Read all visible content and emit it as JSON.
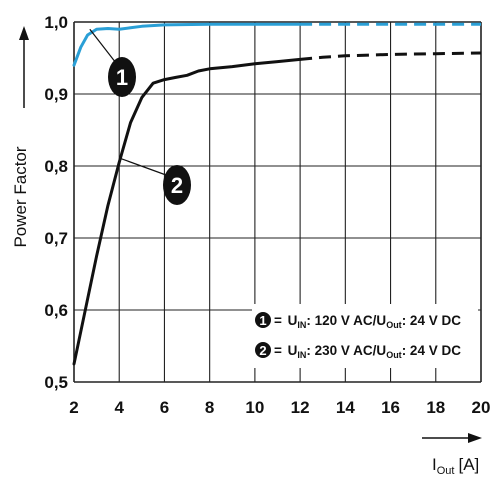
{
  "chart_data": {
    "type": "line",
    "xlabel": {
      "main": "I",
      "sub": "Out",
      "unit": "[A]"
    },
    "ylabel": "Power Factor",
    "xlim": [
      2,
      20
    ],
    "ylim": [
      0.5,
      1.0
    ],
    "x_ticks": [
      "2",
      "4",
      "6",
      "8",
      "10",
      "12",
      "14",
      "16",
      "18",
      "20"
    ],
    "y_ticks": [
      "0,5",
      "0,6",
      "0,7",
      "0,8",
      "0,9",
      "1,0"
    ],
    "grid": true,
    "series": [
      {
        "marker": "1",
        "color": "#2a9fd6",
        "solid_until_x": 12.8,
        "points": [
          [
            2.0,
            0.94
          ],
          [
            2.3,
            0.965
          ],
          [
            2.6,
            0.982
          ],
          [
            3.0,
            0.99
          ],
          [
            3.5,
            0.991
          ],
          [
            4.0,
            0.99
          ],
          [
            4.5,
            0.992
          ],
          [
            5.0,
            0.994
          ],
          [
            6.0,
            0.996
          ],
          [
            8.0,
            0.997
          ],
          [
            12.0,
            0.997
          ],
          [
            16.0,
            0.997
          ],
          [
            20.0,
            0.997
          ]
        ]
      },
      {
        "marker": "2",
        "color": "#111111",
        "solid_until_x": 12.8,
        "points": [
          [
            2.0,
            0.525
          ],
          [
            2.5,
            0.6
          ],
          [
            3.0,
            0.675
          ],
          [
            3.5,
            0.745
          ],
          [
            4.0,
            0.805
          ],
          [
            4.5,
            0.86
          ],
          [
            5.0,
            0.895
          ],
          [
            5.5,
            0.915
          ],
          [
            6.0,
            0.92
          ],
          [
            6.5,
            0.923
          ],
          [
            7.0,
            0.926
          ],
          [
            7.5,
            0.932
          ],
          [
            8.0,
            0.935
          ],
          [
            9.0,
            0.938
          ],
          [
            10.0,
            0.942
          ],
          [
            11.0,
            0.945
          ],
          [
            12.0,
            0.948
          ],
          [
            13.0,
            0.951
          ],
          [
            14.0,
            0.953
          ],
          [
            16.0,
            0.955
          ],
          [
            18.0,
            0.956
          ],
          [
            20.0,
            0.957
          ]
        ]
      }
    ],
    "legend": {
      "placement": "bottom-right",
      "entries": [
        {
          "marker": "1",
          "equals": "=",
          "u": "U",
          "in_sub": "IN",
          "mid": ": 120 V AC/U",
          "out_sub": "Out",
          "tail": ": 24 V DC"
        },
        {
          "marker": "2",
          "equals": "=",
          "u": "U",
          "in_sub": "IN",
          "mid": ": 230 V AC/U",
          "out_sub": "Out",
          "tail": ": 24 V DC"
        }
      ]
    },
    "annotations": [
      {
        "marker": "1",
        "target_x": 2.7,
        "target_y": 0.99
      },
      {
        "marker": "2",
        "target_x": 4.1,
        "target_y": 0.81
      }
    ]
  }
}
